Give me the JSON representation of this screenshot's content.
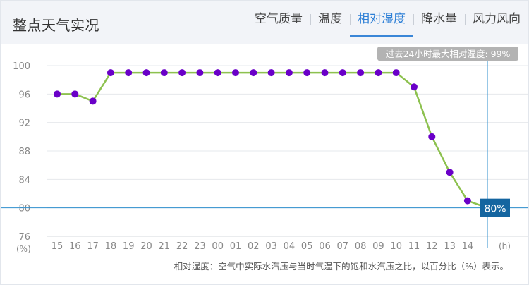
{
  "header": {
    "title": "整点天气实况",
    "tabs": [
      {
        "label": "空气质量",
        "active": false
      },
      {
        "label": "温度",
        "active": false
      },
      {
        "label": "相对湿度",
        "active": true
      },
      {
        "label": "降水量",
        "active": false
      },
      {
        "label": "风力风向",
        "active": false
      }
    ]
  },
  "colors": {
    "line": "#8dc14f",
    "point": "#6a00c8",
    "axis_line": "#2f8fce",
    "current_badge": "#1465a0",
    "max_badge": "#b3b3b3",
    "accent": "#3a86d7"
  },
  "chart_data": {
    "type": "line",
    "x": [
      "15",
      "16",
      "17",
      "18",
      "19",
      "20",
      "21",
      "22",
      "23",
      "00",
      "01",
      "02",
      "03",
      "04",
      "05",
      "06",
      "07",
      "08",
      "09",
      "10",
      "11",
      "12",
      "13",
      "14"
    ],
    "y": [
      96,
      96,
      95,
      99,
      99,
      99,
      99,
      99,
      99,
      99,
      99,
      99,
      99,
      99,
      99,
      99,
      99,
      99,
      99,
      99,
      97,
      90,
      85,
      81
    ],
    "current_value": 80,
    "xlabel": "(h)",
    "ylabel": "(%)",
    "yticks": [
      76,
      80,
      84,
      88,
      92,
      96,
      100
    ],
    "ylim": [
      76,
      100
    ],
    "grid": true,
    "max_note": "过去24小时最大相对湿度: 99%",
    "current_label": "80%",
    "footnote": "相对湿度：空气中实际水汽压与当时气温下的饱和水汽压之比，以百分比（%）表示。"
  }
}
